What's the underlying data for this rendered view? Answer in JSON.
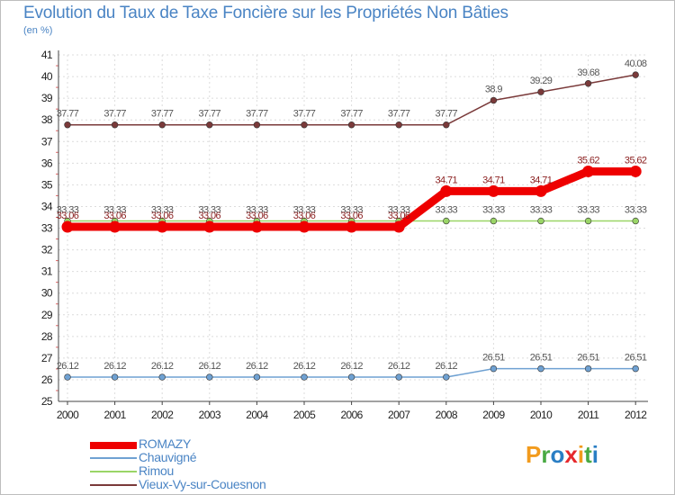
{
  "header": {
    "title": "Evolution du Taux de Taxe Foncière sur les Propriétés Non Bâties",
    "unit": "(en %)"
  },
  "chart_data": {
    "type": "line",
    "x": [
      "2000",
      "2001",
      "2002",
      "2003",
      "2004",
      "2005",
      "2006",
      "2007",
      "2008",
      "2009",
      "2010",
      "2011",
      "2012"
    ],
    "y_ticks": [
      "25",
      "26",
      "27",
      "28",
      "29",
      "30",
      "31",
      "32",
      "33",
      "34",
      "35",
      "36",
      "37",
      "38",
      "39",
      "40",
      "41"
    ],
    "ylim": [
      25,
      41
    ],
    "grid": true,
    "legend_position": "bottom-left",
    "series": [
      {
        "name": "ROMAZY",
        "color": "#ee0000",
        "values": [
          33.06,
          33.06,
          33.06,
          33.06,
          33.06,
          33.06,
          33.06,
          33.06,
          34.71,
          34.71,
          34.71,
          35.62,
          35.62
        ],
        "labels": [
          "33.06",
          "33.06",
          "33.06",
          "33.06",
          "33.06",
          "33.06",
          "33.06",
          "33.06",
          "34.71",
          "34.71",
          "34.71",
          "35.62",
          "35.62"
        ]
      },
      {
        "name": "Chauvigné",
        "color": "#6fa1d2",
        "values": [
          26.12,
          26.12,
          26.12,
          26.12,
          26.12,
          26.12,
          26.12,
          26.12,
          26.12,
          26.51,
          26.51,
          26.51,
          26.51
        ],
        "labels": [
          "26.12",
          "26.12",
          "26.12",
          "26.12",
          "26.12",
          "26.12",
          "26.12",
          "26.12",
          "26.12",
          "26.51",
          "26.51",
          "26.51",
          "26.51"
        ]
      },
      {
        "name": "Rimou",
        "color": "#9ad567",
        "values": [
          33.33,
          33.33,
          33.33,
          33.33,
          33.33,
          33.33,
          33.33,
          33.33,
          33.33,
          33.33,
          33.33,
          33.33,
          33.33
        ],
        "labels": [
          "33.33",
          "33.33",
          "33.33",
          "33.33",
          "33.33",
          "33.33",
          "33.33",
          "33.33",
          "33.33",
          "33.33",
          "33.33",
          "33.33",
          "33.33"
        ]
      },
      {
        "name": "Vieux-Vy-sur-Couesnon",
        "color": "#7a3a3a",
        "values": [
          37.77,
          37.77,
          37.77,
          37.77,
          37.77,
          37.77,
          37.77,
          37.77,
          37.77,
          38.9,
          39.29,
          39.68,
          40.08
        ],
        "labels": [
          "37.77",
          "37.77",
          "37.77",
          "37.77",
          "37.77",
          "37.77",
          "37.77",
          "37.77",
          "37.77",
          "38.9",
          "39.29",
          "39.68",
          "40.08"
        ]
      }
    ]
  },
  "legend": {
    "items": [
      "ROMAZY",
      "Chauvigné",
      "Rimou",
      "Vieux-Vy-sur-Couesnon"
    ]
  },
  "logo": {
    "letters": [
      "P",
      "r",
      "o",
      "x",
      "i",
      "t",
      "i"
    ],
    "colors": [
      "#f29b1d",
      "#49a942",
      "#2a7ec4",
      "#e6282c",
      "#f29b1d",
      "#49a942",
      "#2a7ec4"
    ]
  }
}
